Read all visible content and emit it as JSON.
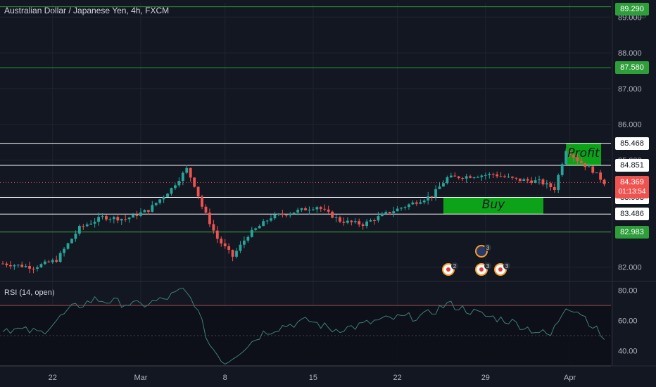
{
  "title": "Australian Dollar / Japanese Yen, 4h, FXCM",
  "currency": "JPY",
  "rsi_label": "RSI (14, open)",
  "colors": {
    "up": "#26a69a",
    "down": "#ef5350",
    "zone": "#0db019",
    "green_line": "#2e9e3a",
    "bg": "#131722",
    "grid": "#1f2430"
  },
  "chart_data": {
    "type": "candlestick",
    "symbol": "AUDJPY",
    "timeframe": "4h",
    "ylim": [
      81.6,
      89.4
    ],
    "price_ticks": [
      "82.000",
      "83.000",
      "84.000",
      "85.000",
      "86.000",
      "87.000",
      "88.000",
      "89.000"
    ],
    "x_ticks": [
      "22",
      "Mar",
      "8",
      "15",
      "22",
      "29",
      "Apr"
    ],
    "close_path": [
      {
        "i": 0,
        "v": 82.1
      },
      {
        "i": 8,
        "v": 82.0
      },
      {
        "i": 14,
        "v": 82.2
      },
      {
        "i": 20,
        "v": 83.1
      },
      {
        "i": 26,
        "v": 83.4
      },
      {
        "i": 32,
        "v": 83.35
      },
      {
        "i": 38,
        "v": 83.6
      },
      {
        "i": 44,
        "v": 84.2
      },
      {
        "i": 48,
        "v": 84.75
      },
      {
        "i": 50,
        "v": 84.3
      },
      {
        "i": 52,
        "v": 83.7
      },
      {
        "i": 56,
        "v": 82.8
      },
      {
        "i": 60,
        "v": 82.3
      },
      {
        "i": 64,
        "v": 82.9
      },
      {
        "i": 70,
        "v": 83.4
      },
      {
        "i": 76,
        "v": 83.55
      },
      {
        "i": 82,
        "v": 83.7
      },
      {
        "i": 88,
        "v": 83.3
      },
      {
        "i": 94,
        "v": 83.2
      },
      {
        "i": 100,
        "v": 83.5
      },
      {
        "i": 106,
        "v": 83.75
      },
      {
        "i": 112,
        "v": 84.0
      },
      {
        "i": 116,
        "v": 84.5
      },
      {
        "i": 122,
        "v": 84.55
      },
      {
        "i": 128,
        "v": 84.6
      },
      {
        "i": 134,
        "v": 84.45
      },
      {
        "i": 140,
        "v": 84.4
      },
      {
        "i": 144,
        "v": 84.2
      },
      {
        "i": 147,
        "v": 85.3
      },
      {
        "i": 150,
        "v": 85.0
      },
      {
        "i": 154,
        "v": 84.7
      },
      {
        "i": 157,
        "v": 84.37
      }
    ],
    "horizontal_levels": [
      {
        "price": "89.290",
        "color": "green"
      },
      {
        "price": "87.580",
        "color": "green"
      },
      {
        "price": "85.468",
        "color": "white"
      },
      {
        "price": "84.851",
        "color": "white"
      },
      {
        "price": "83.953",
        "color": "white"
      },
      {
        "price": "83.486",
        "color": "white"
      },
      {
        "price": "82.983",
        "color": "green"
      }
    ],
    "current_price": "84.369",
    "countdown": "01:13:54",
    "zones": [
      {
        "label": "Profit",
        "from": 84.851,
        "to": 85.468
      },
      {
        "label": "Buy",
        "from": 83.486,
        "to": 83.953
      }
    ],
    "rsi": {
      "name": "RSI (14, open)",
      "period": 14,
      "ticks": [
        "80.00",
        "60.00",
        "40.00"
      ],
      "ylim": [
        30,
        84
      ],
      "bands": [
        30,
        70
      ],
      "path": [
        {
          "i": 0,
          "v": 55
        },
        {
          "i": 10,
          "v": 52
        },
        {
          "i": 18,
          "v": 68
        },
        {
          "i": 24,
          "v": 74
        },
        {
          "i": 30,
          "v": 72
        },
        {
          "i": 36,
          "v": 70
        },
        {
          "i": 42,
          "v": 74
        },
        {
          "i": 47,
          "v": 80
        },
        {
          "i": 50,
          "v": 72
        },
        {
          "i": 54,
          "v": 44
        },
        {
          "i": 58,
          "v": 32
        },
        {
          "i": 62,
          "v": 40
        },
        {
          "i": 68,
          "v": 52
        },
        {
          "i": 74,
          "v": 57
        },
        {
          "i": 80,
          "v": 60
        },
        {
          "i": 86,
          "v": 54
        },
        {
          "i": 92,
          "v": 56
        },
        {
          "i": 98,
          "v": 60
        },
        {
          "i": 104,
          "v": 62
        },
        {
          "i": 110,
          "v": 63
        },
        {
          "i": 116,
          "v": 71
        },
        {
          "i": 120,
          "v": 68
        },
        {
          "i": 126,
          "v": 63
        },
        {
          "i": 132,
          "v": 60
        },
        {
          "i": 138,
          "v": 54
        },
        {
          "i": 143,
          "v": 50
        },
        {
          "i": 147,
          "v": 70
        },
        {
          "i": 151,
          "v": 65
        },
        {
          "i": 157,
          "v": 48
        }
      ]
    },
    "events": [
      {
        "label": "2",
        "kind": "target"
      },
      {
        "label": "3",
        "kind": "flag"
      },
      {
        "label": "3",
        "kind": "target"
      },
      {
        "label": "3",
        "kind": "target"
      }
    ]
  }
}
